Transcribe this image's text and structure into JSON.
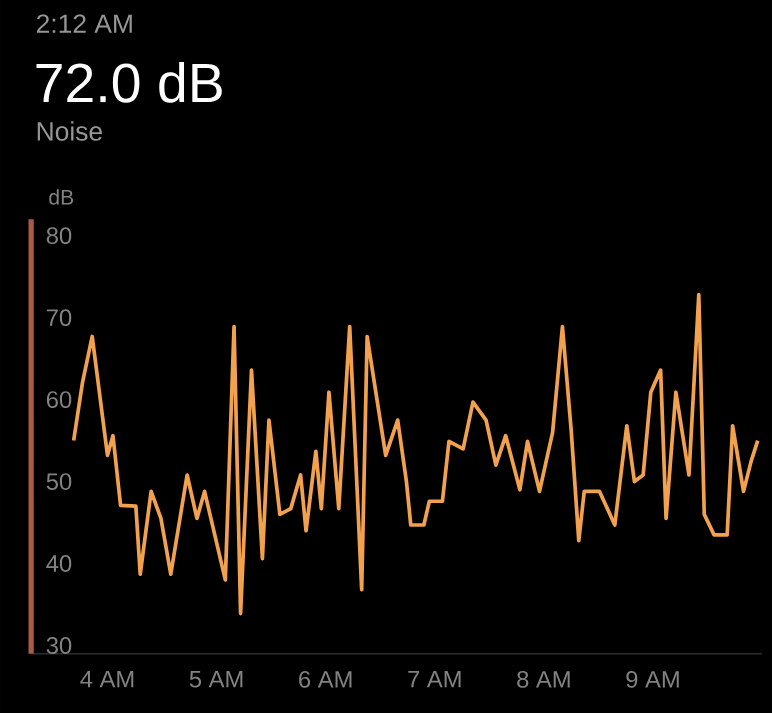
{
  "chart_data": {
    "type": "line",
    "title": "72.0 dB",
    "subtitle": "Noise",
    "annotations": [
      "2:12 AM"
    ],
    "ylabel": "dB",
    "x": [
      3.69,
      3.77,
      3.86,
      4.0,
      4.05,
      4.12,
      4.26,
      4.3,
      4.4,
      4.49,
      4.58,
      4.73,
      4.82,
      4.89,
      5.08,
      5.16,
      5.22,
      5.32,
      5.42,
      5.48,
      5.58,
      5.68,
      5.77,
      5.82,
      5.91,
      5.96,
      6.03,
      6.12,
      6.22,
      6.33,
      6.38,
      6.55,
      6.66,
      6.74,
      6.78,
      6.9,
      6.95,
      7.07,
      7.13,
      7.26,
      7.35,
      7.47,
      7.56,
      7.65,
      7.78,
      7.85,
      7.96,
      8.08,
      8.17,
      8.25,
      8.32,
      8.37,
      8.51,
      8.65,
      8.76,
      8.83,
      8.91,
      8.98,
      9.07,
      9.12,
      9.21,
      9.33,
      9.42,
      9.47,
      9.56,
      9.68,
      9.73,
      9.83,
      9.9,
      9.96
    ],
    "series": [
      {
        "color": "#f2a24e",
        "values": [
          55,
          62,
          67.7,
          53.2,
          55.6,
          47.1,
          47,
          38.7,
          48.8,
          45.5,
          38.7,
          50.8,
          45.5,
          48.8,
          38,
          68.9,
          33.9,
          63.6,
          40.6,
          57.5,
          46,
          46.7,
          50.8,
          44,
          53.7,
          46.7,
          60.9,
          46.7,
          68.9,
          36.8,
          67.7,
          53.2,
          57.5,
          50,
          44.7,
          44.7,
          47.6,
          47.6,
          54.9,
          54,
          59.7,
          57.5,
          52,
          55.6,
          49,
          54.9,
          48.8,
          56,
          68.9,
          56.3,
          42.8,
          48.8,
          48.8,
          44.7,
          56.8,
          50,
          50.8,
          60.9,
          63.6,
          45.5,
          60.9,
          50.8,
          72.8,
          46,
          43.5,
          43.5,
          56.8,
          48.8,
          52.5,
          55
        ]
      }
    ],
    "xlim": [
      3.3,
      10.0
    ],
    "ylim": [
      29,
      82
    ],
    "xticks": [
      {
        "value": 4,
        "label": "4 AM"
      },
      {
        "value": 5,
        "label": "5 AM"
      },
      {
        "value": 6,
        "label": "6 AM"
      },
      {
        "value": 7,
        "label": "7 AM"
      },
      {
        "value": 8,
        "label": "8 AM"
      },
      {
        "value": 9,
        "label": "9 AM"
      }
    ],
    "yticks": [
      30,
      40,
      50,
      60,
      70,
      80
    ],
    "grid": false
  }
}
